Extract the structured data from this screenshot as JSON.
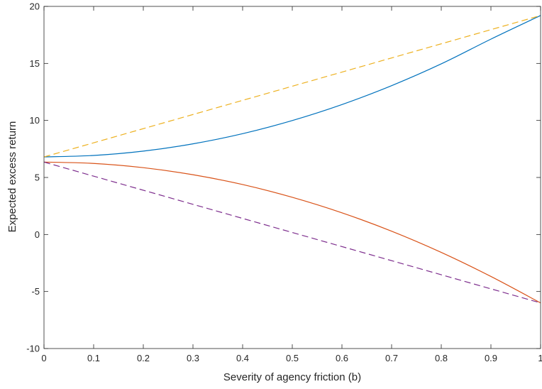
{
  "chart_data": {
    "type": "line",
    "title": "",
    "xlabel": "Severity of agency friction (b)",
    "ylabel": "Expected excess return",
    "xlim": [
      0,
      1
    ],
    "ylim": [
      -10,
      20
    ],
    "xticks": [
      0,
      0.1,
      0.2,
      0.3,
      0.4,
      0.5,
      0.6,
      0.7,
      0.8,
      0.9,
      1
    ],
    "yticks": [
      -10,
      -5,
      0,
      5,
      10,
      15,
      20
    ],
    "xtick_labels": [
      "0",
      "0.1",
      "0.2",
      "0.3",
      "0.4",
      "0.5",
      "0.6",
      "0.7",
      "0.8",
      "0.9",
      "1"
    ],
    "ytick_labels": [
      "-10",
      "-5",
      "0",
      "5",
      "10",
      "15",
      "20"
    ],
    "grid": false,
    "legend": "none",
    "series": [
      {
        "style": "solid",
        "color": "#0072BD",
        "x": [
          0,
          0.1,
          0.2,
          0.3,
          0.4,
          0.5,
          0.6,
          0.7,
          0.8,
          0.9,
          1
        ],
        "values": [
          6.8,
          6.93,
          7.31,
          7.95,
          8.84,
          9.99,
          11.39,
          13.05,
          14.96,
          17.13,
          19.2
        ]
      },
      {
        "style": "dashed",
        "color": "#EDB120",
        "x": [
          0,
          1
        ],
        "values": [
          6.8,
          19.2
        ]
      },
      {
        "style": "solid",
        "color": "#D95319",
        "x": [
          0,
          0.1,
          0.2,
          0.3,
          0.4,
          0.5,
          0.6,
          0.7,
          0.8,
          0.9,
          1
        ],
        "values": [
          6.35,
          6.23,
          5.86,
          5.24,
          4.38,
          3.26,
          1.9,
          0.29,
          -1.57,
          -3.68,
          -6.0
        ]
      },
      {
        "style": "dashed",
        "color": "#7E2F8E",
        "x": [
          0,
          1
        ],
        "values": [
          6.35,
          -6.0
        ]
      }
    ]
  }
}
